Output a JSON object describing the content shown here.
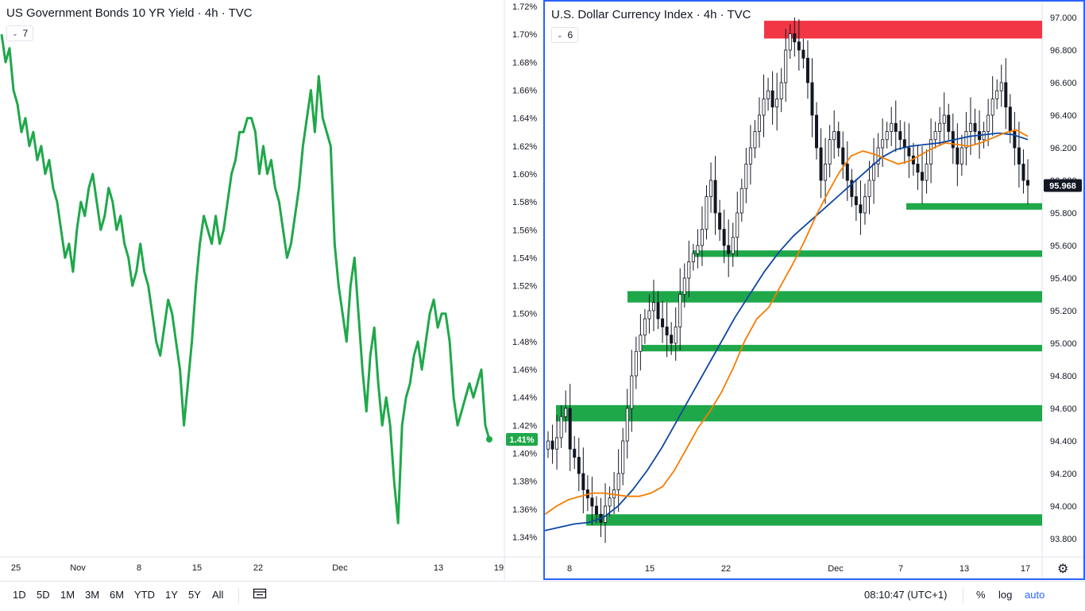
{
  "left": {
    "title": "US Government Bonds 10 YR Yield · 4h · TVC",
    "legend_count": "7",
    "price_label": "1.41%"
  },
  "right": {
    "title": "U.S. Dollar Currency Index · 4h · TVC",
    "legend_count": "6",
    "price_label": "95.968"
  },
  "bottom_bar": {
    "ranges": [
      "1D",
      "5D",
      "1M",
      "3M",
      "6M",
      "YTD",
      "1Y",
      "5Y",
      "All"
    ],
    "clock": "08:10:47 (UTC+1)",
    "percent": "%",
    "log": "log",
    "auto": "auto"
  },
  "colors": {
    "green": "#1fa84a",
    "red": "#f23645",
    "orange": "#f57c00",
    "blue": "#0d47a1",
    "candle": "#131722",
    "accent": "#2962ff"
  },
  "icons": {
    "compare": "calendar-range-icon",
    "settings": "gear-icon"
  },
  "chart_data": [
    {
      "type": "line",
      "title": "US Government Bonds 10 YR Yield · 4h · TVC",
      "x_ticks": [
        "25",
        "Nov",
        "8",
        "15",
        "22",
        "Dec",
        "13",
        "19"
      ],
      "y_ticks": [
        "1.72%",
        "1.70%",
        "1.68%",
        "1.66%",
        "1.64%",
        "1.62%",
        "1.60%",
        "1.58%",
        "1.56%",
        "1.54%",
        "1.52%",
        "1.50%",
        "1.48%",
        "1.46%",
        "1.44%",
        "1.42%",
        "1.40%",
        "1.38%",
        "1.36%",
        "1.34%"
      ],
      "ylim": [
        1.33,
        1.72
      ],
      "last_value": 1.41,
      "series": [
        {
          "values": [
            1.7,
            1.68,
            1.69,
            1.66,
            1.65,
            1.63,
            1.64,
            1.62,
            1.63,
            1.61,
            1.62,
            1.6,
            1.61,
            1.59,
            1.58,
            1.56,
            1.54,
            1.55,
            1.53,
            1.56,
            1.58,
            1.57,
            1.59,
            1.6,
            1.58,
            1.56,
            1.57,
            1.59,
            1.58,
            1.56,
            1.57,
            1.55,
            1.54,
            1.52,
            1.53,
            1.55,
            1.53,
            1.52,
            1.5,
            1.48,
            1.47,
            1.49,
            1.51,
            1.5,
            1.48,
            1.46,
            1.42,
            1.45,
            1.48,
            1.52,
            1.55,
            1.57,
            1.56,
            1.55,
            1.57,
            1.55,
            1.56,
            1.58,
            1.6,
            1.61,
            1.63,
            1.63,
            1.64,
            1.64,
            1.63,
            1.6,
            1.62,
            1.6,
            1.61,
            1.59,
            1.58,
            1.56,
            1.54,
            1.55,
            1.57,
            1.59,
            1.62,
            1.64,
            1.66,
            1.63,
            1.67,
            1.64,
            1.63,
            1.62,
            1.55,
            1.52,
            1.5,
            1.48,
            1.52,
            1.54,
            1.5,
            1.46,
            1.43,
            1.47,
            1.49,
            1.45,
            1.42,
            1.44,
            1.42,
            1.38,
            1.35,
            1.42,
            1.44,
            1.45,
            1.47,
            1.48,
            1.46,
            1.48,
            1.5,
            1.51,
            1.49,
            1.5,
            1.5,
            1.48,
            1.44,
            1.42,
            1.43,
            1.44,
            1.45,
            1.44,
            1.45,
            1.46,
            1.42,
            1.41
          ]
        }
      ]
    },
    {
      "type": "candlestick",
      "title": "U.S. Dollar Currency Index · 4h · TVC",
      "x_ticks": [
        "8",
        "15",
        "22",
        "Dec",
        "7",
        "13",
        "17"
      ],
      "y_ticks": [
        "97.000",
        "96.800",
        "96.600",
        "96.400",
        "96.200",
        "96.000",
        "95.800",
        "95.600",
        "95.400",
        "95.200",
        "95.000",
        "94.800",
        "94.600",
        "94.400",
        "94.200",
        "94.000",
        "93.800"
      ],
      "ylim": [
        93.72,
        97.08
      ],
      "last_value": 95.968,
      "closes": [
        94.4,
        94.35,
        94.42,
        94.55,
        94.6,
        94.35,
        94.3,
        94.2,
        94.1,
        94.05,
        94.0,
        93.95,
        93.9,
        94.0,
        94.05,
        94.1,
        94.2,
        94.4,
        94.6,
        94.8,
        94.95,
        95.05,
        95.15,
        95.2,
        95.25,
        95.15,
        95.1,
        95.05,
        95.0,
        95.1,
        95.3,
        95.4,
        95.5,
        95.55,
        95.6,
        95.7,
        95.9,
        96.0,
        95.8,
        95.7,
        95.6,
        95.55,
        95.65,
        95.8,
        95.95,
        96.1,
        96.2,
        96.3,
        96.4,
        96.5,
        96.55,
        96.45,
        96.5,
        96.6,
        96.8,
        96.9,
        96.85,
        96.8,
        96.75,
        96.6,
        96.4,
        96.2,
        96.0,
        96.1,
        96.25,
        96.3,
        96.2,
        96.1,
        96.0,
        95.9,
        95.85,
        95.8,
        95.9,
        96.0,
        96.1,
        96.2,
        96.25,
        96.3,
        96.35,
        96.3,
        96.25,
        96.2,
        96.15,
        96.1,
        96.05,
        96.0,
        96.1,
        96.25,
        96.3,
        96.35,
        96.4,
        96.3,
        96.2,
        96.1,
        96.2,
        96.3,
        96.35,
        96.3,
        96.25,
        96.3,
        96.4,
        96.5,
        96.55,
        96.6,
        96.45,
        96.3,
        96.2,
        96.1,
        96.0,
        95.97
      ],
      "sma_orange": [
        93.95,
        94.0,
        94.04,
        94.06,
        94.08,
        94.08,
        94.07,
        94.06,
        94.06,
        94.08,
        94.12,
        94.22,
        94.35,
        94.48,
        94.58,
        94.7,
        94.85,
        95.02,
        95.15,
        95.22,
        95.35,
        95.48,
        95.62,
        95.78,
        95.92,
        96.05,
        96.15,
        96.18,
        96.16,
        96.13,
        96.1,
        96.12,
        96.16,
        96.2,
        96.23,
        96.22,
        96.21,
        96.23,
        96.26,
        96.29,
        96.31,
        96.27
      ],
      "sma_blue": [
        93.85,
        93.87,
        93.89,
        93.9,
        93.93,
        94.0,
        94.1,
        94.22,
        94.36,
        94.52,
        94.68,
        94.84,
        95.0,
        95.16,
        95.3,
        95.44,
        95.56,
        95.66,
        95.74,
        95.82,
        95.9,
        95.98,
        96.06,
        96.14,
        96.19,
        96.21,
        96.22,
        96.23,
        96.25,
        96.27,
        96.28,
        96.29,
        96.28,
        96.25
      ],
      "resistance_zone": [
        96.9,
        96.98
      ],
      "support_zones": [
        [
          95.82,
          95.86
        ],
        [
          95.53,
          95.57
        ],
        [
          95.25,
          95.32
        ],
        [
          94.95,
          94.99
        ],
        [
          94.52,
          94.62
        ],
        [
          93.88,
          93.95
        ]
      ]
    }
  ]
}
